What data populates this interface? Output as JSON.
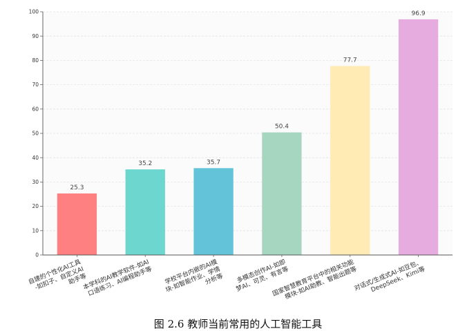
{
  "chart_data": {
    "type": "bar",
    "title": "",
    "xlabel": "",
    "ylabel": "",
    "ylim": [
      0,
      100
    ],
    "yticks": [
      0,
      10,
      20,
      30,
      40,
      50,
      60,
      70,
      80,
      90,
      100
    ],
    "grid": true,
    "categories": [
      [
        "自建的个性化AI工具",
        "-如扣子、自定义AI",
        "助手等"
      ],
      [
        "本学科的AI教学软件-如AI",
        "口语练习、AI编程助手等"
      ],
      [
        "学校平台内嵌的AI模",
        "块-如智能作业、学情",
        "分析等"
      ],
      [
        "多模态创作AI-如即",
        "梦AI、可灵、有言等"
      ],
      [
        "国家智慧教育平台中的相关功能",
        "模块-如AI助教、智能出题等"
      ],
      [
        "对话式/生成式AI-如豆包、",
        "DeepSeek、Kimi等"
      ]
    ],
    "values": [
      25.3,
      35.2,
      35.7,
      50.4,
      77.7,
      96.9
    ],
    "value_labels": [
      "25.3",
      "35.2",
      "35.7",
      "50.4",
      "77.7",
      "96.9"
    ],
    "colors": [
      "#ff8080",
      "#6dd6cf",
      "#62c3d9",
      "#a6d6c0",
      "#ffebb3",
      "#e6acdf"
    ]
  },
  "caption": "图 2.6 教师当前常用的人工智能工具"
}
